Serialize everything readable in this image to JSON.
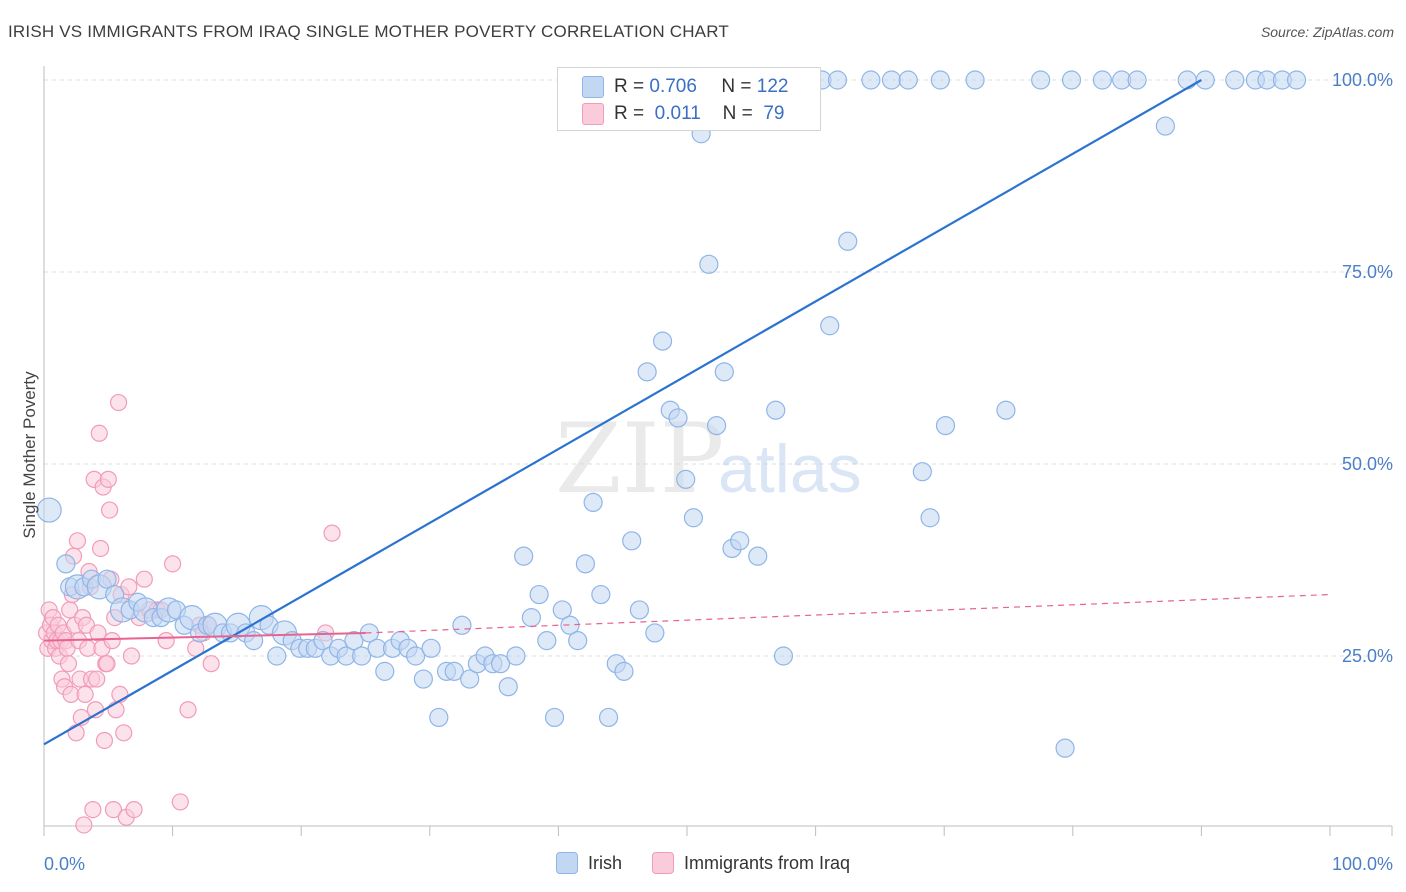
{
  "title": "IRISH VS IMMIGRANTS FROM IRAQ SINGLE MOTHER POVERTY CORRELATION CHART",
  "source": "Source: ZipAtlas.com",
  "watermark": {
    "zip": "ZIP",
    "atlas": "atlas"
  },
  "legend": {
    "r_label": "R =",
    "n_label": "N =",
    "rows": [
      {
        "name": "Irish",
        "r": "0.706",
        "n": "122",
        "color": "#8fb5e8",
        "fill": "#c2d7f2",
        "line": "#2b73d0"
      },
      {
        "name": "Immigrants from Iraq",
        "r": "0.011",
        "n": "79",
        "color": "#f29bb8",
        "fill": "#f9cbdb",
        "line": "#e8648f"
      }
    ]
  },
  "chart_data": {
    "type": "scatter",
    "title": "IRISH VS IMMIGRANTS FROM IRAQ SINGLE MOTHER POVERTY CORRELATION CHART",
    "xlabel": "",
    "ylabel": "Single Mother Poverty",
    "xlim": [
      0,
      100
    ],
    "ylim": [
      0,
      102
    ],
    "x_tick_labels": [
      "0.0%",
      "100.0%"
    ],
    "y_ticks": [
      25,
      50,
      75,
      100
    ],
    "y_tick_labels": [
      "25.0%",
      "50.0%",
      "75.0%",
      "100.0%"
    ],
    "grid": true,
    "series": [
      {
        "name": "Irish",
        "color": "#8fb5e8",
        "trend": {
          "x": [
            0,
            90
          ],
          "y": [
            13.5,
            100
          ]
        },
        "points": [
          [
            0.4,
            44
          ],
          [
            1.7,
            37
          ],
          [
            2,
            34
          ],
          [
            2.6,
            34
          ],
          [
            3.1,
            34
          ],
          [
            3.7,
            35
          ],
          [
            4.3,
            34
          ],
          [
            4.9,
            35
          ],
          [
            5.5,
            33
          ],
          [
            6.1,
            31
          ],
          [
            6.7,
            31
          ],
          [
            7.3,
            32
          ],
          [
            7.9,
            31
          ],
          [
            8.5,
            30
          ],
          [
            9.1,
            30
          ],
          [
            9.7,
            31
          ],
          [
            10.3,
            31
          ],
          [
            10.9,
            29
          ],
          [
            11.5,
            30
          ],
          [
            12.1,
            28
          ],
          [
            12.7,
            29
          ],
          [
            13.3,
            29
          ],
          [
            13.9,
            28
          ],
          [
            14.5,
            28
          ],
          [
            15.1,
            29
          ],
          [
            15.7,
            28
          ],
          [
            16.3,
            27
          ],
          [
            16.9,
            30
          ],
          [
            17.5,
            29
          ],
          [
            18.1,
            25
          ],
          [
            18.7,
            28
          ],
          [
            19.3,
            27
          ],
          [
            19.9,
            26
          ],
          [
            20.5,
            26
          ],
          [
            21.1,
            26
          ],
          [
            21.7,
            27
          ],
          [
            22.3,
            25
          ],
          [
            22.9,
            26
          ],
          [
            23.5,
            25
          ],
          [
            24.1,
            27
          ],
          [
            24.7,
            25
          ],
          [
            25.3,
            28
          ],
          [
            25.9,
            26
          ],
          [
            26.5,
            23
          ],
          [
            27.1,
            26
          ],
          [
            27.7,
            27
          ],
          [
            28.3,
            26
          ],
          [
            28.9,
            25
          ],
          [
            29.5,
            22
          ],
          [
            30.1,
            26
          ],
          [
            30.7,
            17
          ],
          [
            31.3,
            23
          ],
          [
            31.9,
            23
          ],
          [
            32.5,
            29
          ],
          [
            33.1,
            22
          ],
          [
            33.7,
            24
          ],
          [
            34.3,
            25
          ],
          [
            34.9,
            24
          ],
          [
            35.5,
            24
          ],
          [
            36.1,
            21
          ],
          [
            36.7,
            25
          ],
          [
            37.3,
            38
          ],
          [
            37.9,
            30
          ],
          [
            38.5,
            33
          ],
          [
            39.1,
            27
          ],
          [
            39.7,
            17
          ],
          [
            40.3,
            31
          ],
          [
            40.9,
            29
          ],
          [
            41.5,
            27
          ],
          [
            42.1,
            37
          ],
          [
            42.7,
            45
          ],
          [
            43.3,
            33
          ],
          [
            43.9,
            17
          ],
          [
            44.5,
            24
          ],
          [
            45.1,
            23
          ],
          [
            45.7,
            40
          ],
          [
            46.3,
            31
          ],
          [
            46.9,
            62
          ],
          [
            47.5,
            28
          ],
          [
            48.1,
            66
          ],
          [
            48.7,
            57
          ],
          [
            49.3,
            56
          ],
          [
            49.9,
            48
          ],
          [
            50.5,
            43
          ],
          [
            51.1,
            93
          ],
          [
            51.7,
            76
          ],
          [
            52.3,
            55
          ],
          [
            52.9,
            62
          ],
          [
            53.5,
            39
          ],
          [
            54.1,
            40
          ],
          [
            55.5,
            38
          ],
          [
            56.9,
            57
          ],
          [
            57.5,
            25
          ],
          [
            58.3,
            100
          ],
          [
            59.4,
            100
          ],
          [
            60.5,
            100
          ],
          [
            61.1,
            68
          ],
          [
            61.7,
            100
          ],
          [
            62.5,
            79
          ],
          [
            64.3,
            100
          ],
          [
            65.9,
            100
          ],
          [
            67.2,
            100
          ],
          [
            68.3,
            49
          ],
          [
            68.9,
            43
          ],
          [
            69.7,
            100
          ],
          [
            70.1,
            55
          ],
          [
            72.4,
            100
          ],
          [
            74.8,
            57
          ],
          [
            77.5,
            100
          ],
          [
            79.4,
            13
          ],
          [
            79.9,
            100
          ],
          [
            82.3,
            100
          ],
          [
            83.8,
            100
          ],
          [
            85,
            100
          ],
          [
            87.2,
            94
          ],
          [
            88.9,
            100
          ],
          [
            90.3,
            100
          ],
          [
            92.6,
            100
          ],
          [
            94.2,
            100
          ],
          [
            95.1,
            100
          ],
          [
            96.3,
            100
          ],
          [
            97.4,
            100
          ]
        ]
      },
      {
        "name": "Immigrants from Iraq",
        "color": "#f29bb8",
        "trend": {
          "x": [
            0,
            25
          ],
          "y": [
            27,
            28
          ]
        },
        "points": [
          [
            0.2,
            28
          ],
          [
            0.3,
            26
          ],
          [
            0.4,
            31
          ],
          [
            0.5,
            29
          ],
          [
            0.6,
            27
          ],
          [
            0.7,
            30
          ],
          [
            0.8,
            28
          ],
          [
            0.9,
            26
          ],
          [
            1,
            27
          ],
          [
            1.1,
            29
          ],
          [
            1.2,
            25
          ],
          [
            1.3,
            27
          ],
          [
            1.4,
            22
          ],
          [
            1.5,
            28
          ],
          [
            1.6,
            21
          ],
          [
            1.7,
            27
          ],
          [
            1.8,
            26
          ],
          [
            1.9,
            24
          ],
          [
            2,
            31
          ],
          [
            2.1,
            20
          ],
          [
            2.2,
            33
          ],
          [
            2.3,
            38
          ],
          [
            2.4,
            29
          ],
          [
            2.5,
            15
          ],
          [
            2.6,
            40
          ],
          [
            2.7,
            27
          ],
          [
            2.8,
            22
          ],
          [
            2.9,
            17
          ],
          [
            3,
            30
          ],
          [
            3.1,
            3
          ],
          [
            3.2,
            20
          ],
          [
            3.3,
            29
          ],
          [
            3.4,
            26
          ],
          [
            3.5,
            36
          ],
          [
            3.6,
            34
          ],
          [
            3.7,
            22
          ],
          [
            3.8,
            5
          ],
          [
            3.9,
            48
          ],
          [
            4,
            18
          ],
          [
            4.1,
            22
          ],
          [
            4.2,
            28
          ],
          [
            4.3,
            54
          ],
          [
            4.4,
            39
          ],
          [
            4.5,
            26
          ],
          [
            4.6,
            47
          ],
          [
            4.7,
            14
          ],
          [
            4.8,
            24
          ],
          [
            4.9,
            24
          ],
          [
            5,
            48
          ],
          [
            5.1,
            44
          ],
          [
            5.2,
            35
          ],
          [
            5.3,
            27
          ],
          [
            5.4,
            5
          ],
          [
            5.5,
            30
          ],
          [
            5.6,
            18
          ],
          [
            5.8,
            58
          ],
          [
            5.9,
            20
          ],
          [
            6,
            33
          ],
          [
            6.2,
            15
          ],
          [
            6.4,
            4
          ],
          [
            6.6,
            34
          ],
          [
            7,
            5
          ],
          [
            7.4,
            30
          ],
          [
            8.2,
            31
          ],
          [
            9.5,
            27
          ],
          [
            10,
            37
          ],
          [
            10.6,
            6
          ],
          [
            11.2,
            18
          ],
          [
            11.8,
            26
          ],
          [
            12.1,
            29
          ],
          [
            12.4,
            28
          ],
          [
            13,
            24
          ],
          [
            21.9,
            28
          ],
          [
            22.4,
            41
          ],
          [
            8.8,
            31
          ],
          [
            6.8,
            25
          ],
          [
            7.8,
            35
          ],
          [
            9.1,
            31
          ],
          [
            12.8,
            29
          ]
        ]
      }
    ]
  }
}
